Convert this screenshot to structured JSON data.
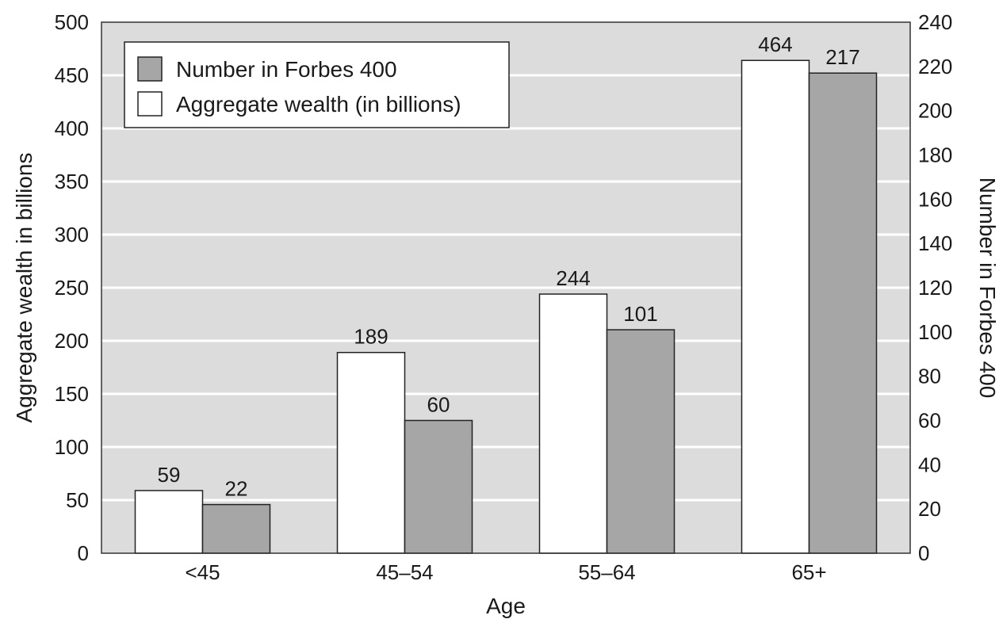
{
  "chart_data": {
    "type": "bar",
    "categories": [
      "<45",
      "45–54",
      "55–64",
      "65+"
    ],
    "series": [
      {
        "name": "Aggregate wealth (in billions)",
        "axis": "left",
        "values": [
          59,
          189,
          244,
          464
        ],
        "color": "#ffffff",
        "value_labels": [
          "59",
          "189",
          "244",
          "464"
        ]
      },
      {
        "name": "Number in Forbes 400",
        "axis": "right",
        "values": [
          22,
          60,
          101,
          217
        ],
        "color": "#a6a6a6",
        "value_labels": [
          "22",
          "60",
          "101",
          "217"
        ]
      }
    ],
    "xlabel": "Age",
    "ylabel_left": "Aggregate wealth in billions",
    "ylabel_right": "Number in Forbes 400",
    "ylim_left": [
      0,
      500
    ],
    "ylim_right": [
      0,
      240
    ],
    "yticks_left": [
      "0",
      "50",
      "100",
      "150",
      "200",
      "250",
      "300",
      "350",
      "400",
      "450",
      "500"
    ],
    "yticks_right": [
      "0",
      "20",
      "40",
      "60",
      "80",
      "100",
      "120",
      "140",
      "160",
      "180",
      "200",
      "220",
      "240"
    ],
    "grid": true,
    "plot_background": "#dcdcdc",
    "grid_color": "#ffffff",
    "legend": {
      "placement": "top-left",
      "entries": [
        {
          "label": "Number in Forbes 400",
          "color": "#a6a6a6"
        },
        {
          "label": "Aggregate wealth (in billions)",
          "color": "#ffffff"
        }
      ]
    }
  }
}
